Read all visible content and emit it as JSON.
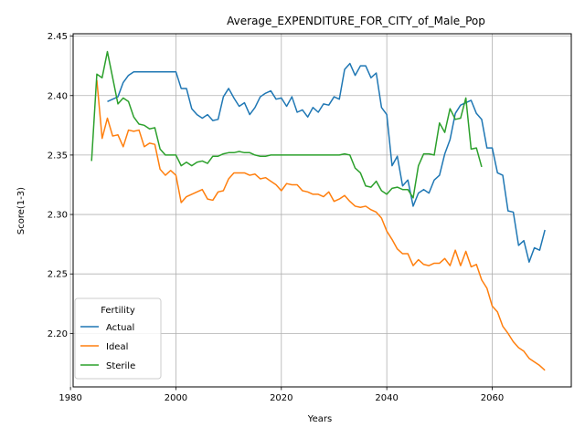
{
  "chart_data": {
    "type": "line",
    "title": "Average_EXPENDITURE_FOR_CITY_of_Male_Pop",
    "xlabel": "Years",
    "ylabel": "Score(1-3)",
    "xlim": [
      1980.5,
      2075
    ],
    "ylim": [
      2.155,
      2.452
    ],
    "xticks": [
      1980,
      2000,
      2020,
      2040,
      2060
    ],
    "yticks": [
      2.2,
      2.25,
      2.3,
      2.35,
      2.4,
      2.45
    ],
    "ytick_labels": [
      "2.20",
      "2.25",
      "2.30",
      "2.35",
      "2.40",
      "2.45"
    ],
    "grid": true,
    "legend": {
      "title": "Fertility",
      "position": "bottom-left"
    },
    "series": [
      {
        "name": "Actual",
        "color": "#1f77b4",
        "x": [
          1987,
          1988,
          1989,
          1990,
          1991,
          1992,
          1993,
          1994,
          1995,
          1996,
          1997,
          1998,
          1999,
          2000,
          2001,
          2002,
          2003,
          2004,
          2005,
          2006,
          2007,
          2008,
          2009,
          2010,
          2011,
          2012,
          2013,
          2014,
          2015,
          2016,
          2017,
          2018,
          2019,
          2020,
          2021,
          2022,
          2023,
          2024,
          2025,
          2026,
          2027,
          2028,
          2029,
          2030,
          2031,
          2032,
          2033,
          2034,
          2035,
          2036,
          2037,
          2038,
          2039,
          2040,
          2041,
          2042,
          2043,
          2044,
          2045,
          2046,
          2047,
          2048,
          2049,
          2050,
          2051,
          2052,
          2053,
          2054,
          2055,
          2056,
          2057,
          2058,
          2059,
          2060,
          2061,
          2062,
          2063,
          2064,
          2065,
          2066,
          2067,
          2068,
          2069,
          2070
        ],
        "values": [
          2.395,
          2.397,
          2.399,
          2.411,
          2.417,
          2.42,
          2.42,
          2.42,
          2.42,
          2.42,
          2.42,
          2.42,
          2.42,
          2.42,
          2.406,
          2.406,
          2.389,
          2.384,
          2.381,
          2.384,
          2.379,
          2.38,
          2.399,
          2.406,
          2.398,
          2.391,
          2.394,
          2.384,
          2.39,
          2.399,
          2.402,
          2.404,
          2.397,
          2.398,
          2.391,
          2.399,
          2.386,
          2.388,
          2.382,
          2.39,
          2.386,
          2.393,
          2.392,
          2.399,
          2.397,
          2.422,
          2.427,
          2.417,
          2.425,
          2.425,
          2.415,
          2.419,
          2.39,
          2.384,
          2.341,
          2.349,
          2.324,
          2.329,
          2.307,
          2.318,
          2.321,
          2.318,
          2.329,
          2.333,
          2.351,
          2.363,
          2.385,
          2.392,
          2.394,
          2.396,
          2.385,
          2.38,
          2.356,
          2.356,
          2.335,
          2.333,
          2.303,
          2.302,
          2.274,
          2.278,
          2.26,
          2.272,
          2.27,
          2.287
        ]
      },
      {
        "name": "Ideal",
        "color": "#ff7f0e",
        "x": [
          1985,
          1986,
          1987,
          1988,
          1989,
          1990,
          1991,
          1992,
          1993,
          1994,
          1995,
          1996,
          1997,
          1998,
          1999,
          2000,
          2001,
          2002,
          2003,
          2004,
          2005,
          2006,
          2007,
          2008,
          2009,
          2010,
          2011,
          2012,
          2013,
          2014,
          2015,
          2016,
          2017,
          2018,
          2019,
          2020,
          2021,
          2022,
          2023,
          2024,
          2025,
          2026,
          2027,
          2028,
          2029,
          2030,
          2031,
          2032,
          2033,
          2034,
          2035,
          2036,
          2037,
          2038,
          2039,
          2040,
          2041,
          2042,
          2043,
          2044,
          2045,
          2046,
          2047,
          2048,
          2049,
          2050,
          2051,
          2052,
          2053,
          2054,
          2055,
          2056,
          2057,
          2058,
          2059,
          2060,
          2061,
          2062,
          2063,
          2064,
          2065,
          2066,
          2067,
          2068,
          2069,
          2070
        ],
        "values": [
          2.413,
          2.364,
          2.381,
          2.366,
          2.367,
          2.357,
          2.371,
          2.37,
          2.371,
          2.357,
          2.36,
          2.359,
          2.338,
          2.333,
          2.337,
          2.333,
          2.31,
          2.315,
          2.317,
          2.319,
          2.321,
          2.313,
          2.312,
          2.319,
          2.32,
          2.33,
          2.335,
          2.335,
          2.335,
          2.333,
          2.334,
          2.33,
          2.331,
          2.328,
          2.325,
          2.32,
          2.326,
          2.325,
          2.325,
          2.32,
          2.319,
          2.317,
          2.317,
          2.315,
          2.319,
          2.311,
          2.313,
          2.316,
          2.311,
          2.307,
          2.306,
          2.307,
          2.304,
          2.302,
          2.297,
          2.286,
          2.279,
          2.271,
          2.267,
          2.267,
          2.257,
          2.262,
          2.258,
          2.257,
          2.259,
          2.259,
          2.263,
          2.257,
          2.27,
          2.257,
          2.269,
          2.256,
          2.258,
          2.245,
          2.238,
          2.223,
          2.218,
          2.206,
          2.2,
          2.193,
          2.188,
          2.185,
          2.179,
          2.176,
          2.173,
          2.169
        ]
      },
      {
        "name": "Sterile",
        "color": "#2ca02c",
        "x": [
          1984,
          1985,
          1986,
          1987,
          1988,
          1989,
          1990,
          1991,
          1992,
          1993,
          1994,
          1995,
          1996,
          1997,
          1998,
          1999,
          2000,
          2001,
          2002,
          2003,
          2004,
          2005,
          2006,
          2007,
          2008,
          2009,
          2010,
          2011,
          2012,
          2013,
          2014,
          2015,
          2016,
          2017,
          2018,
          2019,
          2020,
          2021,
          2022,
          2023,
          2024,
          2025,
          2026,
          2027,
          2028,
          2029,
          2030,
          2031,
          2032,
          2033,
          2034,
          2035,
          2036,
          2037,
          2038,
          2039,
          2040,
          2041,
          2042,
          2043,
          2044,
          2045,
          2046,
          2047,
          2048,
          2049,
          2050,
          2051,
          2052,
          2053,
          2054,
          2055,
          2056,
          2057,
          2058
        ],
        "values": [
          2.345,
          2.418,
          2.415,
          2.437,
          2.415,
          2.393,
          2.398,
          2.395,
          2.382,
          2.376,
          2.375,
          2.372,
          2.373,
          2.355,
          2.35,
          2.35,
          2.35,
          2.341,
          2.344,
          2.341,
          2.344,
          2.345,
          2.343,
          2.349,
          2.349,
          2.351,
          2.352,
          2.352,
          2.353,
          2.352,
          2.352,
          2.35,
          2.349,
          2.349,
          2.35,
          2.35,
          2.35,
          2.35,
          2.35,
          2.35,
          2.35,
          2.35,
          2.35,
          2.35,
          2.35,
          2.35,
          2.35,
          2.35,
          2.351,
          2.35,
          2.339,
          2.335,
          2.324,
          2.323,
          2.328,
          2.32,
          2.317,
          2.322,
          2.323,
          2.321,
          2.321,
          2.314,
          2.341,
          2.351,
          2.351,
          2.35,
          2.377,
          2.369,
          2.389,
          2.38,
          2.381,
          2.398,
          2.355,
          2.356,
          2.34
        ]
      }
    ]
  }
}
